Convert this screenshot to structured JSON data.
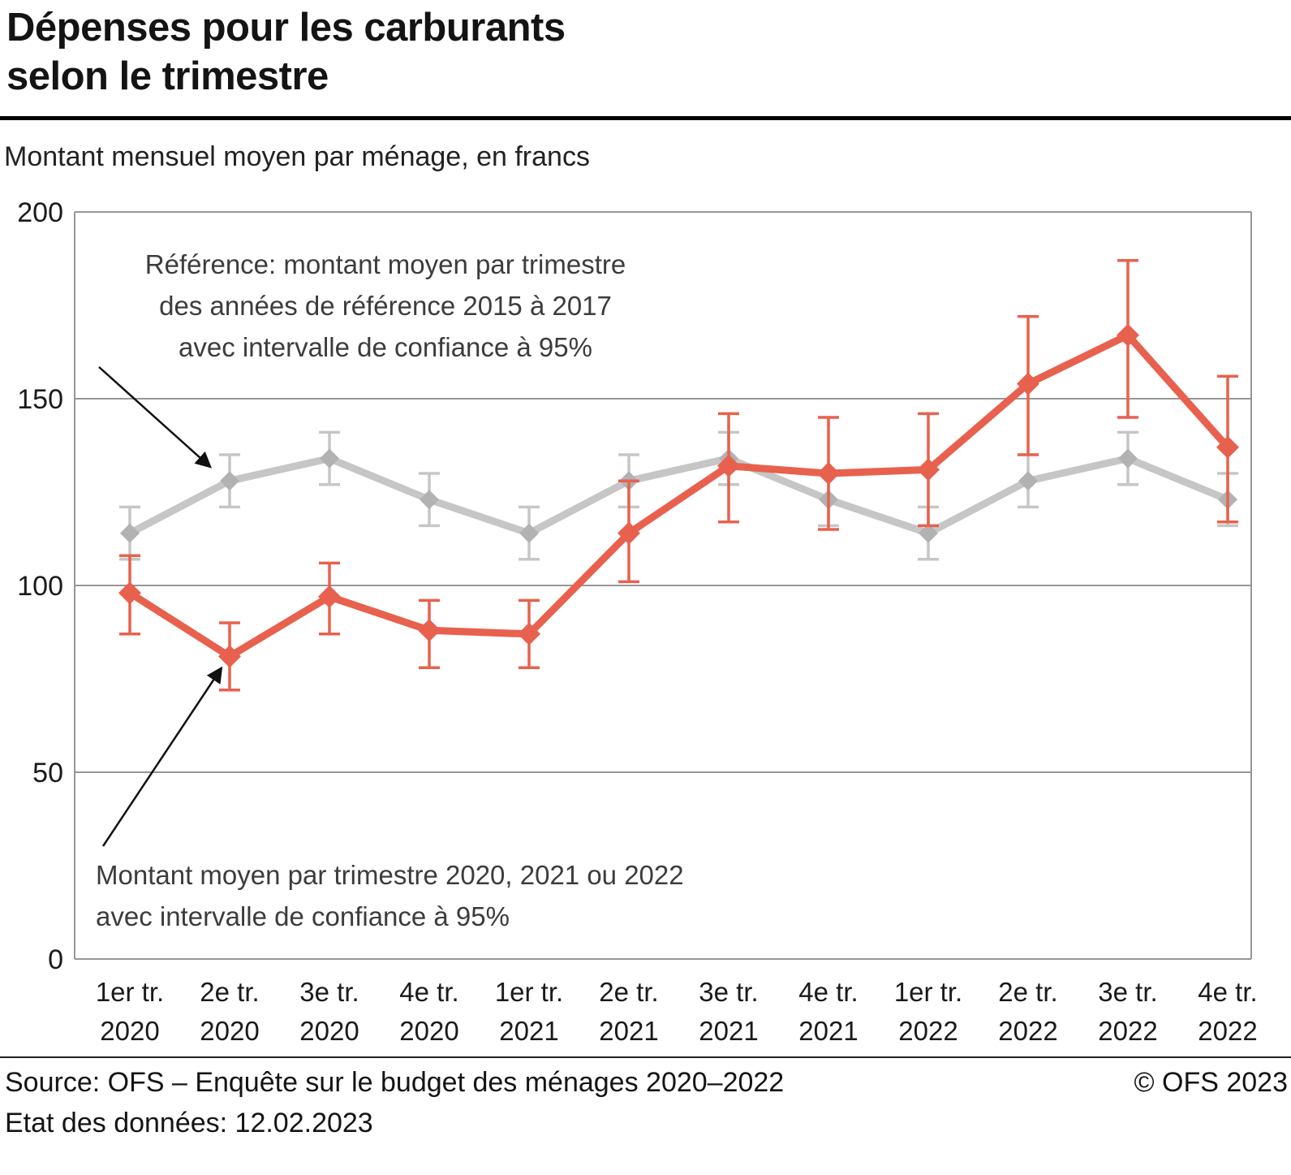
{
  "header": {
    "title_line1": "Dépenses pour les carburants",
    "title_line2": "selon le trimestre",
    "subtitle": "Montant mensuel moyen par ménage, en francs"
  },
  "annotations": {
    "reference": {
      "lines": [
        "Référence: montant moyen par trimestre",
        "des années de référence 2015 à 2017",
        "avec intervalle de confiance à 95%"
      ]
    },
    "current": {
      "lines": [
        "Montant moyen par trimestre 2020, 2021 ou 2022",
        "avec intervalle de confiance à 95%"
      ]
    }
  },
  "footer": {
    "source": "Source: OFS – Enquête sur le budget des ménages 2020–2022",
    "copyright": "© OFS 2023",
    "state": "Etat des données: 12.02.2023"
  },
  "chart_data": {
    "type": "line",
    "title": "Dépenses pour les carburants selon le trimestre",
    "subtitle": "Montant mensuel moyen par ménage, en francs",
    "xlabel": "",
    "ylabel": "francs",
    "ylim": [
      0,
      200
    ],
    "yticks": [
      0,
      50,
      100,
      150,
      200
    ],
    "grid": "horizontal",
    "legend_position": "annotations-with-arrows",
    "categories": [
      {
        "quarter": "1er tr.",
        "year": "2020"
      },
      {
        "quarter": "2e tr.",
        "year": "2020"
      },
      {
        "quarter": "3e tr.",
        "year": "2020"
      },
      {
        "quarter": "4e tr.",
        "year": "2020"
      },
      {
        "quarter": "1er tr.",
        "year": "2021"
      },
      {
        "quarter": "2e tr.",
        "year": "2021"
      },
      {
        "quarter": "3e tr.",
        "year": "2021"
      },
      {
        "quarter": "4e tr.",
        "year": "2021"
      },
      {
        "quarter": "1er tr.",
        "year": "2022"
      },
      {
        "quarter": "2e tr.",
        "year": "2022"
      },
      {
        "quarter": "3e tr.",
        "year": "2022"
      },
      {
        "quarter": "4e tr.",
        "year": "2022"
      }
    ],
    "series": [
      {
        "id": "reference",
        "name": "Référence: montant moyen par trimestre des années de référence 2015 à 2017 avec intervalle de confiance à 95%",
        "color": "#c6c6c6",
        "marker_color": "#b2b2b2",
        "values": [
          114,
          128,
          134,
          123,
          114,
          128,
          134,
          123,
          114,
          128,
          134,
          123
        ],
        "ci_lower": [
          107,
          121,
          127,
          116,
          107,
          121,
          127,
          116,
          107,
          121,
          127,
          116
        ],
        "ci_upper": [
          121,
          135,
          141,
          130,
          121,
          135,
          141,
          130,
          121,
          135,
          141,
          130
        ]
      },
      {
        "id": "current",
        "name": "Montant moyen par trimestre 2020, 2021 ou 2022 avec intervalle de confiance à 95%",
        "color": "#e8614e",
        "marker_color": "#e8614e",
        "values": [
          98,
          81,
          97,
          88,
          87,
          114,
          132,
          130,
          131,
          154,
          167,
          137
        ],
        "ci_lower": [
          87,
          72,
          87,
          78,
          78,
          101,
          117,
          115,
          116,
          135,
          145,
          117
        ],
        "ci_upper": [
          108,
          90,
          106,
          96,
          96,
          128,
          146,
          145,
          146,
          172,
          187,
          156
        ]
      }
    ]
  }
}
